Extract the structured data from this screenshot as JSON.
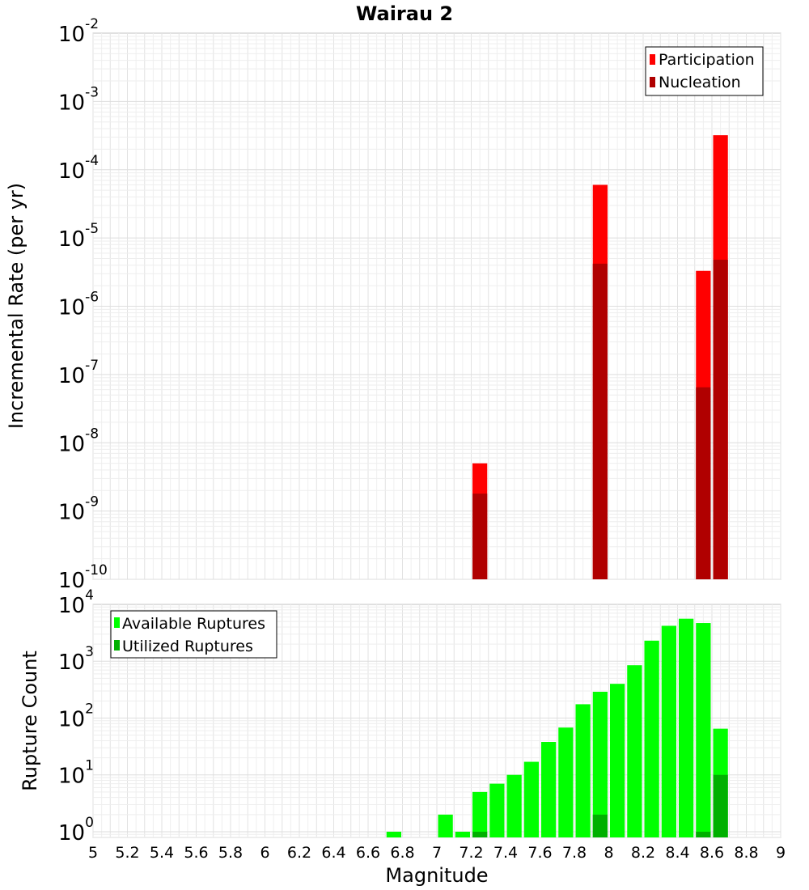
{
  "chart_data": {
    "title": "Wairau 2",
    "xlabel": "Magnitude",
    "xlim": [
      5,
      9
    ],
    "xticks": [
      5,
      5.2,
      5.4,
      5.6,
      5.8,
      6,
      6.2,
      6.4,
      6.6,
      6.8,
      7,
      7.2,
      7.4,
      7.6,
      7.8,
      8,
      8.2,
      8.4,
      8.6,
      8.8,
      9
    ],
    "bin_width": 0.1,
    "grid": true,
    "charts": [
      {
        "type": "bar",
        "ylabel": "Incremental Rate (per yr)",
        "yscale": "log",
        "ylim_exp": [
          -10,
          -2
        ],
        "legend_position": "top-right",
        "series": [
          {
            "name": "Participation",
            "color": "#ff0000",
            "x": [
              7.25,
              7.95,
              8.55,
              8.65
            ],
            "values": [
              5e-09,
              6e-05,
              3.3e-06,
              0.00032
            ]
          },
          {
            "name": "Nucleation",
            "color": "#b00000",
            "x": [
              7.25,
              7.95,
              8.55,
              8.65
            ],
            "values": [
              1.8e-09,
              4.2e-06,
              6.5e-08,
              4.8e-06
            ]
          }
        ]
      },
      {
        "type": "bar",
        "ylabel": "Rupture Count",
        "yscale": "log",
        "ylim_exp": [
          -0.1,
          4
        ],
        "legend_position": "top-left",
        "series": [
          {
            "name": "Available Ruptures",
            "color": "#00ff00",
            "x": [
              6.75,
              7.05,
              7.15,
              7.25,
              7.35,
              7.45,
              7.55,
              7.65,
              7.75,
              7.85,
              7.95,
              8.05,
              8.15,
              8.25,
              8.35,
              8.45,
              8.55,
              8.65
            ],
            "values": [
              1,
              2,
              1,
              5,
              7,
              10,
              17,
              38,
              68,
              175,
              290,
              400,
              850,
              2300,
              4200,
              5600,
              4700,
              65
            ]
          },
          {
            "name": "Utilized Ruptures",
            "color": "#00b000",
            "x": [
              7.25,
              7.95,
              8.55,
              8.65
            ],
            "values": [
              1,
              2,
              1,
              10
            ]
          }
        ]
      }
    ]
  }
}
